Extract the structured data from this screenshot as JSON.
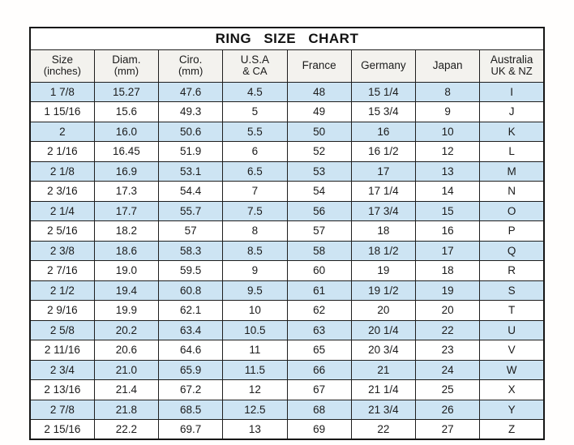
{
  "chart_data": {
    "type": "table",
    "title": "RING  SIZE  CHART",
    "columns": [
      {
        "line1": "Size",
        "line2": "(inches)"
      },
      {
        "line1": "Diam.",
        "line2": "(mm)"
      },
      {
        "line1": "Ciro.",
        "line2": "(mm)"
      },
      {
        "line1": "U.S.A",
        "line2": "& CA"
      },
      {
        "line1": "France",
        "line2": ""
      },
      {
        "line1": "Germany",
        "line2": ""
      },
      {
        "line1": "Japan",
        "line2": ""
      },
      {
        "line1": "Australia",
        "line2": "UK & NZ"
      }
    ],
    "rows": [
      [
        "1 7/8",
        "15.27",
        "47.6",
        "4.5",
        "48",
        "15 1/4",
        "8",
        "I"
      ],
      [
        "1 15/16",
        "15.6",
        "49.3",
        "5",
        "49",
        "15 3/4",
        "9",
        "J"
      ],
      [
        "2",
        "16.0",
        "50.6",
        "5.5",
        "50",
        "16",
        "10",
        "K"
      ],
      [
        "2 1/16",
        "16.45",
        "51.9",
        "6",
        "52",
        "16 1/2",
        "12",
        "L"
      ],
      [
        "2 1/8",
        "16.9",
        "53.1",
        "6.5",
        "53",
        "17",
        "13",
        "M"
      ],
      [
        "2 3/16",
        "17.3",
        "54.4",
        "7",
        "54",
        "17 1/4",
        "14",
        "N"
      ],
      [
        "2 1/4",
        "17.7",
        "55.7",
        "7.5",
        "56",
        "17 3/4",
        "15",
        "O"
      ],
      [
        "2 5/16",
        "18.2",
        "57",
        "8",
        "57",
        "18",
        "16",
        "P"
      ],
      [
        "2 3/8",
        "18.6",
        "58.3",
        "8.5",
        "58",
        "18 1/2",
        "17",
        "Q"
      ],
      [
        "2 7/16",
        "19.0",
        "59.5",
        "9",
        "60",
        "19",
        "18",
        "R"
      ],
      [
        "2 1/2",
        "19.4",
        "60.8",
        "9.5",
        "61",
        "19 1/2",
        "19",
        "S"
      ],
      [
        "2 9/16",
        "19.9",
        "62.1",
        "10",
        "62",
        "20",
        "20",
        "T"
      ],
      [
        "2 5/8",
        "20.2",
        "63.4",
        "10.5",
        "63",
        "20 1/4",
        "22",
        "U"
      ],
      [
        "2 11/16",
        "20.6",
        "64.6",
        "11",
        "65",
        "20 3/4",
        "23",
        "V"
      ],
      [
        "2 3/4",
        "21.0",
        "65.9",
        "11.5",
        "66",
        "21",
        "24",
        "W"
      ],
      [
        "2 13/16",
        "21.4",
        "67.2",
        "12",
        "67",
        "21 1/4",
        "25",
        "X"
      ],
      [
        "2 7/8",
        "21.8",
        "68.5",
        "12.5",
        "68",
        "21 3/4",
        "26",
        "Y"
      ],
      [
        "2 15/16",
        "22.2",
        "69.7",
        "13",
        "69",
        "22",
        "27",
        "Z"
      ]
    ],
    "layout": {
      "stripe_pattern": "odd data rows highlighted, starting with first row",
      "column_count": 8,
      "row_count": 18
    }
  },
  "colors": {
    "row_stripe": "#cde4f3",
    "header_bg": "#f3f2ee",
    "border": "#1e1e1e",
    "text": "#1b1b1b",
    "background": "#ffffff"
  }
}
